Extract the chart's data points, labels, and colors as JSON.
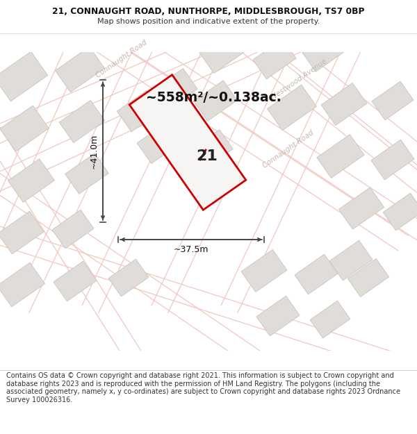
{
  "title_line1": "21, CONNAUGHT ROAD, NUNTHORPE, MIDDLESBROUGH, TS7 0BP",
  "title_line2": "Map shows position and indicative extent of the property.",
  "area_text": "~558m²/~0.138ac.",
  "number_label": "21",
  "width_label": "~37.5m",
  "height_label": "~41.0m",
  "footer_text": "Contains OS data © Crown copyright and database right 2021. This information is subject to Crown copyright and database rights 2023 and is reproduced with the permission of HM Land Registry. The polygons (including the associated geometry, namely x, y co-ordinates) are subject to Crown copyright and database rights 2023 Ordnance Survey 100026316.",
  "map_bg": "#f7f5f3",
  "road_line_color": "#f0c8c0",
  "road_fill": "#f7f5f3",
  "building_fill": "#e0dcd8",
  "building_edge": "#ccc8c4",
  "plot_fill": "#f7f5f3",
  "plot_stroke": "#cc0000",
  "road_label_color": "#c0b8b0",
  "footer_bg": "#ffffff",
  "title_bg": "#ffffff",
  "arrow_color": "#444444",
  "label_color": "#111111"
}
